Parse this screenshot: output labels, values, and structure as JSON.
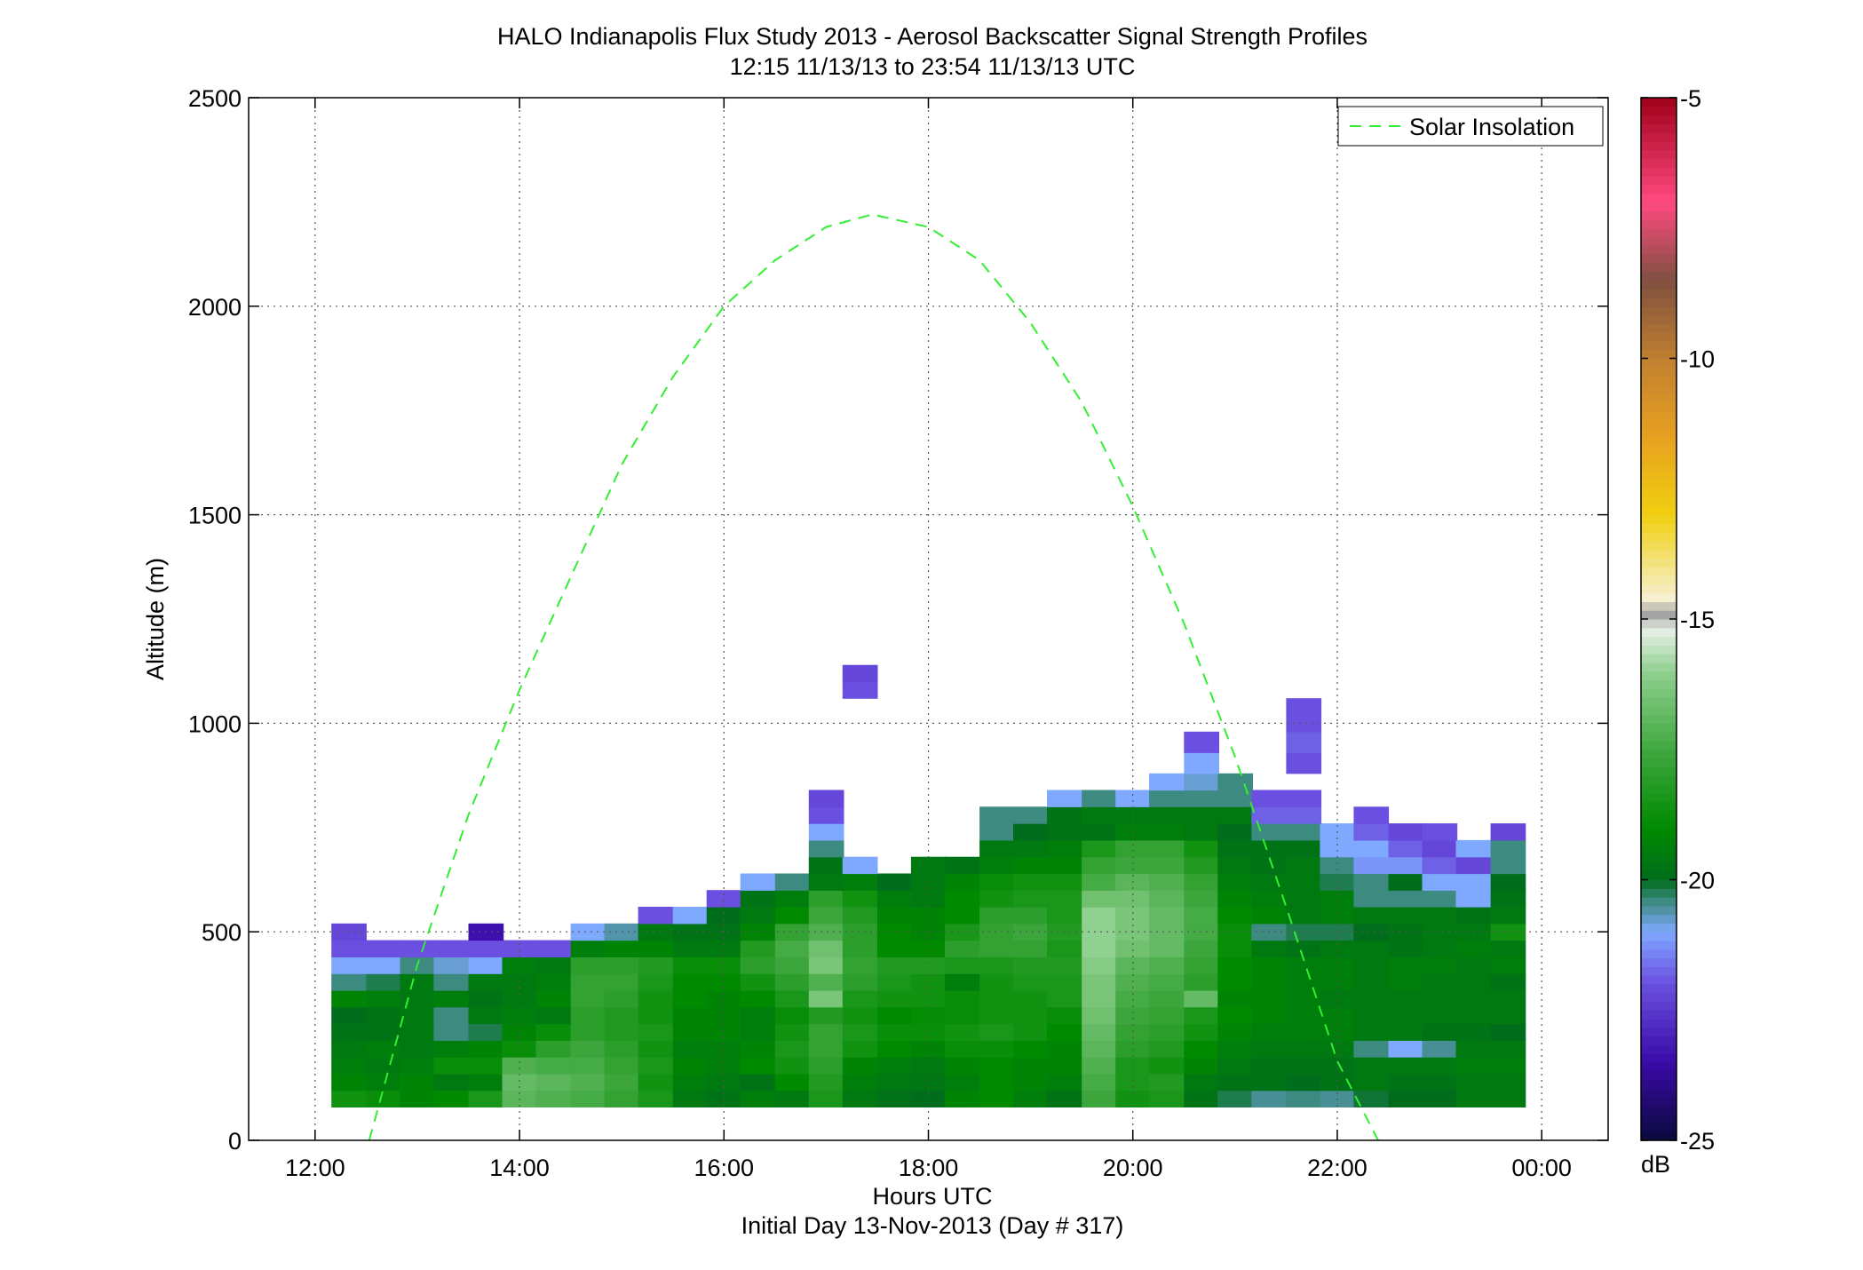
{
  "chart_data": {
    "type": "heatmap",
    "title": "HALO Indianapolis Flux Study 2013 - Aerosol Backscatter Signal Strength Profiles",
    "subtitle": "12:15 11/13/13 to 23:54 11/13/13  UTC",
    "xlabel": "Hours UTC",
    "xlabel2": "Initial Day 13-Nov-2013 (Day # 317)",
    "ylabel": "Altitude (m)",
    "xlim": [
      11.35,
      24.65
    ],
    "ylim": [
      0,
      2500
    ],
    "x_ticks": [
      {
        "value": 12,
        "label": "12:00"
      },
      {
        "value": 14,
        "label": "14:00"
      },
      {
        "value": 16,
        "label": "16:00"
      },
      {
        "value": 18,
        "label": "18:00"
      },
      {
        "value": 20,
        "label": "20:00"
      },
      {
        "value": 22,
        "label": "22:00"
      },
      {
        "value": 24,
        "label": "00:00"
      }
    ],
    "y_ticks": [
      {
        "value": 0,
        "label": "0"
      },
      {
        "value": 500,
        "label": "500"
      },
      {
        "value": 1000,
        "label": "1000"
      },
      {
        "value": 1500,
        "label": "1500"
      },
      {
        "value": 2000,
        "label": "2000"
      },
      {
        "value": 2500,
        "label": "2500"
      }
    ],
    "grid": true,
    "legend": {
      "position": "top-right",
      "entries": [
        "Solar Insolation"
      ]
    },
    "colorbar": {
      "label": "dB",
      "range": [
        -25,
        -5
      ],
      "ticks": [
        {
          "value": -5,
          "label": "-5"
        },
        {
          "value": -10,
          "label": "-10"
        },
        {
          "value": -15,
          "label": "-15"
        },
        {
          "value": -20,
          "label": "-20"
        },
        {
          "value": -25,
          "label": "-25"
        }
      ],
      "stops": [
        {
          "v": -25,
          "c": "#0a0a3c"
        },
        {
          "v": -23.5,
          "c": "#3a0aa8"
        },
        {
          "v": -22,
          "c": "#6a4fe0"
        },
        {
          "v": -21,
          "c": "#7fa8ff"
        },
        {
          "v": -20.4,
          "c": "#3c8a80"
        },
        {
          "v": -20,
          "c": "#006d1c"
        },
        {
          "v": -19,
          "c": "#008a00"
        },
        {
          "v": -17.5,
          "c": "#40a840"
        },
        {
          "v": -16,
          "c": "#90d090"
        },
        {
          "v": -15.2,
          "c": "#e8f0e8"
        },
        {
          "v": -14.9,
          "c": "#a0a0a0"
        },
        {
          "v": -14.6,
          "c": "#f6f0d0"
        },
        {
          "v": -13,
          "c": "#f0d010"
        },
        {
          "v": -11.5,
          "c": "#e8a020"
        },
        {
          "v": -10,
          "c": "#c08030"
        },
        {
          "v": -8.5,
          "c": "#805040"
        },
        {
          "v": -7,
          "c": "#ff4a80"
        },
        {
          "v": -5,
          "c": "#a0001a"
        }
      ]
    },
    "time_bins": [
      12.33,
      12.67,
      13.0,
      13.33,
      13.67,
      14.0,
      14.33,
      14.67,
      15.0,
      15.33,
      15.67,
      16.0,
      16.33,
      16.67,
      17.0,
      17.33,
      17.67,
      18.0,
      18.33,
      18.67,
      19.0,
      19.33,
      19.67,
      20.0,
      20.33,
      20.67,
      21.0,
      21.33,
      21.67,
      22.0,
      22.33,
      22.67,
      23.0,
      23.33,
      23.67
    ],
    "altitude_bins": [
      100,
      140,
      180,
      220,
      260,
      300,
      340,
      380,
      420,
      460,
      500,
      540,
      580,
      620,
      660,
      700,
      740,
      780,
      820,
      860,
      900,
      960,
      1000,
      1040,
      1080,
      1120
    ],
    "values": [
      [
        -18.6,
        -18.8,
        -19.2,
        -19.0,
        -18.4,
        -17.0,
        -17.2,
        -17.4,
        -17.8,
        -18.4,
        -19.6,
        -19.8,
        -19.4,
        -19.6,
        -18.4,
        -19.6,
        -19.9,
        -20.0,
        -19.2,
        -19.0,
        -19.4,
        -19.8,
        -17.6,
        -18.6,
        -18.4,
        -19.8,
        -20.2,
        -20.5,
        -20.4,
        -20.5,
        -20.1,
        -20.0,
        -20.0,
        -19.6,
        -19.6
      ],
      [
        -19.2,
        -19.4,
        -19.2,
        -19.6,
        -19.4,
        -16.8,
        -17.0,
        -17.2,
        -17.6,
        -18.6,
        -19.4,
        -19.6,
        -19.8,
        -19.0,
        -18.2,
        -19.4,
        -19.6,
        -19.7,
        -19.4,
        -19.0,
        -19.2,
        -19.4,
        -17.4,
        -18.4,
        -18.2,
        -19.6,
        -19.8,
        -19.8,
        -20.0,
        -19.8,
        -19.6,
        -19.8,
        -19.8,
        -19.6,
        -19.6
      ],
      [
        -19.4,
        -19.6,
        -19.4,
        -18.8,
        -18.8,
        -17.2,
        -17.4,
        -17.4,
        -17.8,
        -18.4,
        -19.2,
        -19.4,
        -19.0,
        -18.6,
        -18.0,
        -19.2,
        -19.4,
        -19.6,
        -19.2,
        -19.0,
        -19.2,
        -19.2,
        -17.2,
        -18.4,
        -18.6,
        -19.2,
        -19.6,
        -19.8,
        -19.8,
        -19.8,
        -19.6,
        -19.6,
        -19.6,
        -19.4,
        -19.4
      ],
      [
        -19.6,
        -19.4,
        -19.6,
        -19.4,
        -19.2,
        -18.8,
        -18.0,
        -17.6,
        -18.0,
        -18.6,
        -19.4,
        -19.4,
        -19.2,
        -18.4,
        -17.8,
        -18.6,
        -19.0,
        -19.2,
        -18.8,
        -18.8,
        -19.0,
        -19.2,
        -17.0,
        -18.0,
        -18.2,
        -19.0,
        -19.4,
        -19.6,
        -19.6,
        -19.6,
        -20.4,
        -21.0,
        -20.5,
        -19.6,
        -19.6
      ],
      [
        -19.8,
        -19.8,
        -19.6,
        -20.4,
        -20.2,
        -19.2,
        -18.8,
        -18.0,
        -18.2,
        -18.4,
        -19.2,
        -19.2,
        -19.4,
        -18.6,
        -17.8,
        -18.4,
        -18.8,
        -18.8,
        -18.6,
        -18.4,
        -18.6,
        -19.0,
        -16.8,
        -17.8,
        -18.0,
        -18.6,
        -19.2,
        -19.4,
        -19.4,
        -19.4,
        -19.6,
        -19.6,
        -19.8,
        -19.8,
        -20.0
      ],
      [
        -20.0,
        -19.8,
        -19.6,
        -20.4,
        -19.6,
        -19.4,
        -19.6,
        -18.0,
        -18.2,
        -18.6,
        -19.2,
        -19.2,
        -19.4,
        -18.8,
        -18.2,
        -18.6,
        -19.0,
        -18.9,
        -18.8,
        -18.6,
        -18.6,
        -18.8,
        -16.6,
        -17.6,
        -17.8,
        -18.4,
        -19.0,
        -19.2,
        -19.4,
        -19.4,
        -19.6,
        -19.6,
        -19.6,
        -19.6,
        -19.6
      ],
      [
        -19.2,
        -19.4,
        -19.6,
        -19.4,
        -19.8,
        -19.6,
        -19.2,
        -17.8,
        -18.0,
        -18.6,
        -19.0,
        -19.2,
        -19.0,
        -18.4,
        -16.4,
        -18.4,
        -18.6,
        -18.6,
        -18.8,
        -18.6,
        -18.6,
        -18.4,
        -16.4,
        -17.4,
        -17.6,
        -16.8,
        -19.2,
        -19.2,
        -19.4,
        -19.6,
        -19.6,
        -19.6,
        -19.6,
        -19.6,
        -19.6
      ],
      [
        -20.4,
        -20.2,
        -19.6,
        -20.4,
        -19.6,
        -19.6,
        -19.4,
        -17.8,
        -17.8,
        -18.4,
        -19.0,
        -19.0,
        -18.6,
        -18.0,
        -17.2,
        -18.0,
        -18.4,
        -18.6,
        -19.4,
        -18.6,
        -18.4,
        -18.4,
        -16.4,
        -17.2,
        -17.4,
        -18.0,
        -19.0,
        -19.2,
        -19.4,
        -19.4,
        -19.6,
        -19.4,
        -19.6,
        -19.6,
        -19.8
      ],
      [
        -21.0,
        -21.0,
        -20.4,
        -20.8,
        -21.0,
        -19.4,
        -19.6,
        -18.0,
        -18.0,
        -18.2,
        -18.8,
        -18.8,
        -18.0,
        -17.6,
        -16.4,
        -17.8,
        -18.2,
        -18.2,
        -18.4,
        -18.4,
        -18.2,
        -18.2,
        -16.2,
        -17.0,
        -17.2,
        -17.8,
        -19.0,
        -19.2,
        -19.4,
        -19.4,
        -19.6,
        -19.4,
        -19.4,
        -19.6,
        -19.4
      ],
      [
        -22.0,
        -22.0,
        -22.0,
        -22.0,
        -22.0,
        -22.0,
        -22.0,
        -19.4,
        -19.2,
        -19.2,
        -19.6,
        -19.6,
        -18.2,
        -17.4,
        -16.6,
        -18.0,
        -19.0,
        -19.0,
        -18.0,
        -17.8,
        -17.8,
        -18.4,
        -16.0,
        -16.6,
        -16.8,
        -17.6,
        -18.8,
        -19.6,
        -19.8,
        -19.6,
        -19.6,
        -19.8,
        -19.6,
        -19.4,
        -19.6
      ],
      [
        -22.2,
        null,
        null,
        null,
        -23.4,
        null,
        null,
        -21.0,
        -20.6,
        -19.6,
        -19.8,
        -19.8,
        -19.2,
        -17.8,
        -17.2,
        -18.0,
        -19.0,
        -19.2,
        -18.4,
        -17.8,
        -17.6,
        -18.2,
        -16.0,
        -16.4,
        -16.8,
        -17.4,
        -18.8,
        -20.4,
        -20.2,
        -20.2,
        -20.0,
        -19.8,
        -19.6,
        -19.6,
        -18.6
      ],
      [
        null,
        null,
        null,
        null,
        null,
        null,
        null,
        null,
        null,
        -22.0,
        -21.0,
        -20.0,
        -19.6,
        -19.0,
        -17.6,
        -18.2,
        -19.2,
        -19.2,
        -19.0,
        -18.0,
        -18.0,
        -18.4,
        -16.0,
        -16.4,
        -16.8,
        -17.4,
        -19.0,
        -19.2,
        -19.6,
        -19.4,
        -19.6,
        -19.6,
        -19.6,
        -19.8,
        -19.6
      ],
      [
        null,
        null,
        null,
        null,
        null,
        null,
        null,
        null,
        null,
        null,
        null,
        -22.0,
        -19.8,
        -19.4,
        -18.0,
        -18.6,
        -19.4,
        -19.6,
        -19.0,
        -18.6,
        -18.4,
        -18.4,
        -16.6,
        -16.6,
        -17.0,
        -17.6,
        -19.2,
        -19.4,
        -19.6,
        -19.4,
        -20.4,
        -20.4,
        -20.4,
        -21.0,
        -19.8
      ],
      [
        null,
        null,
        null,
        null,
        null,
        null,
        null,
        null,
        null,
        null,
        null,
        null,
        -21.0,
        -20.4,
        -19.6,
        -19.4,
        -20.0,
        -19.6,
        -19.2,
        -18.8,
        -18.6,
        -18.6,
        -17.4,
        -17.0,
        -17.2,
        -17.8,
        -19.4,
        -19.6,
        -19.6,
        -20.2,
        -20.4,
        -20.0,
        -21.0,
        -21.0,
        -20.0
      ],
      [
        null,
        null,
        null,
        null,
        null,
        null,
        null,
        null,
        null,
        null,
        null,
        null,
        null,
        null,
        -19.8,
        -21.0,
        null,
        -19.6,
        -19.8,
        -19.4,
        -19.2,
        -19.2,
        -17.8,
        -17.6,
        -17.6,
        -18.2,
        -19.6,
        -19.8,
        -19.6,
        -20.4,
        -21.2,
        -21.2,
        -21.8,
        -22.2,
        -20.4
      ],
      [
        null,
        null,
        null,
        null,
        null,
        null,
        null,
        null,
        null,
        null,
        null,
        null,
        null,
        null,
        -20.4,
        null,
        null,
        null,
        null,
        -19.6,
        -19.6,
        -19.4,
        -18.4,
        -17.8,
        -17.8,
        -18.6,
        -19.8,
        -19.8,
        -19.8,
        -21.0,
        -21.0,
        -21.8,
        -22.2,
        -21.0,
        -20.4
      ],
      [
        null,
        null,
        null,
        null,
        null,
        null,
        null,
        null,
        null,
        null,
        null,
        null,
        null,
        null,
        -21.0,
        null,
        null,
        null,
        null,
        -20.4,
        -20.0,
        -19.8,
        -19.8,
        -19.4,
        -19.4,
        -19.6,
        -20.0,
        -20.4,
        -20.4,
        -21.0,
        -21.8,
        -22.2,
        -22.0,
        null,
        -22.2
      ],
      [
        null,
        null,
        null,
        null,
        null,
        null,
        null,
        null,
        null,
        null,
        null,
        null,
        null,
        null,
        -22.0,
        null,
        null,
        null,
        null,
        -20.4,
        -20.4,
        -19.8,
        -19.6,
        -19.6,
        -19.6,
        -19.6,
        -19.6,
        -21.8,
        -21.8,
        null,
        -22.0,
        null,
        null,
        null,
        null
      ],
      [
        null,
        null,
        null,
        null,
        null,
        null,
        null,
        null,
        null,
        null,
        null,
        null,
        null,
        null,
        -22.2,
        null,
        null,
        null,
        null,
        null,
        null,
        -21.0,
        -20.4,
        -21.0,
        -20.4,
        -20.4,
        -20.4,
        -22.0,
        -22.0,
        null,
        null,
        null,
        null,
        null,
        null
      ],
      [
        null,
        null,
        null,
        null,
        null,
        null,
        null,
        null,
        null,
        null,
        null,
        null,
        null,
        null,
        null,
        null,
        null,
        null,
        null,
        null,
        null,
        null,
        null,
        null,
        -21.0,
        -20.8,
        -20.4,
        null,
        null,
        null,
        null,
        null,
        null,
        null,
        null
      ],
      [
        null,
        null,
        null,
        null,
        null,
        null,
        null,
        null,
        null,
        null,
        null,
        null,
        null,
        null,
        null,
        null,
        null,
        null,
        null,
        null,
        null,
        null,
        null,
        null,
        null,
        -21.0,
        null,
        null,
        -22.0,
        null,
        null,
        null,
        null,
        null,
        null
      ],
      [
        null,
        null,
        null,
        null,
        null,
        null,
        null,
        null,
        null,
        null,
        null,
        null,
        null,
        null,
        null,
        null,
        null,
        null,
        null,
        null,
        null,
        null,
        null,
        null,
        null,
        -22.0,
        null,
        null,
        -21.8,
        null,
        null,
        null,
        null,
        null,
        null
      ],
      [
        null,
        null,
        null,
        null,
        null,
        null,
        null,
        null,
        null,
        null,
        null,
        null,
        null,
        null,
        null,
        null,
        null,
        null,
        null,
        null,
        null,
        null,
        null,
        null,
        null,
        null,
        null,
        null,
        -22.0,
        null,
        null,
        null,
        null,
        null,
        null
      ],
      [
        null,
        null,
        null,
        null,
        null,
        null,
        null,
        null,
        null,
        null,
        null,
        null,
        null,
        null,
        null,
        null,
        null,
        null,
        null,
        null,
        null,
        null,
        null,
        null,
        null,
        null,
        null,
        null,
        -22.0,
        null,
        null,
        null,
        null,
        null,
        null
      ],
      [
        null,
        null,
        null,
        null,
        null,
        null,
        null,
        null,
        null,
        null,
        null,
        null,
        null,
        null,
        null,
        -22.0,
        null,
        null,
        null,
        null,
        null,
        null,
        null,
        null,
        null,
        null,
        null,
        null,
        null,
        null,
        null,
        null,
        null,
        null,
        null
      ],
      [
        null,
        null,
        null,
        null,
        null,
        null,
        null,
        null,
        null,
        null,
        null,
        null,
        null,
        null,
        null,
        -22.2,
        null,
        null,
        null,
        null,
        null,
        null,
        null,
        null,
        null,
        null,
        null,
        null,
        null,
        null,
        null,
        null,
        null,
        null,
        null
      ]
    ],
    "series": [
      {
        "name": "Solar Insolation",
        "color": "#33ee33",
        "style": "dashed",
        "x": [
          12.53,
          13.0,
          13.5,
          14.0,
          14.5,
          15.0,
          15.5,
          16.0,
          16.5,
          17.0,
          17.45,
          18.0,
          18.5,
          19.0,
          19.5,
          20.0,
          20.5,
          21.0,
          21.5,
          22.0,
          22.4
        ],
        "y": [
          0,
          420,
          780,
          1080,
          1350,
          1620,
          1830,
          2000,
          2110,
          2190,
          2220,
          2190,
          2110,
          1960,
          1770,
          1520,
          1240,
          920,
          560,
          190,
          0
        ]
      }
    ]
  }
}
